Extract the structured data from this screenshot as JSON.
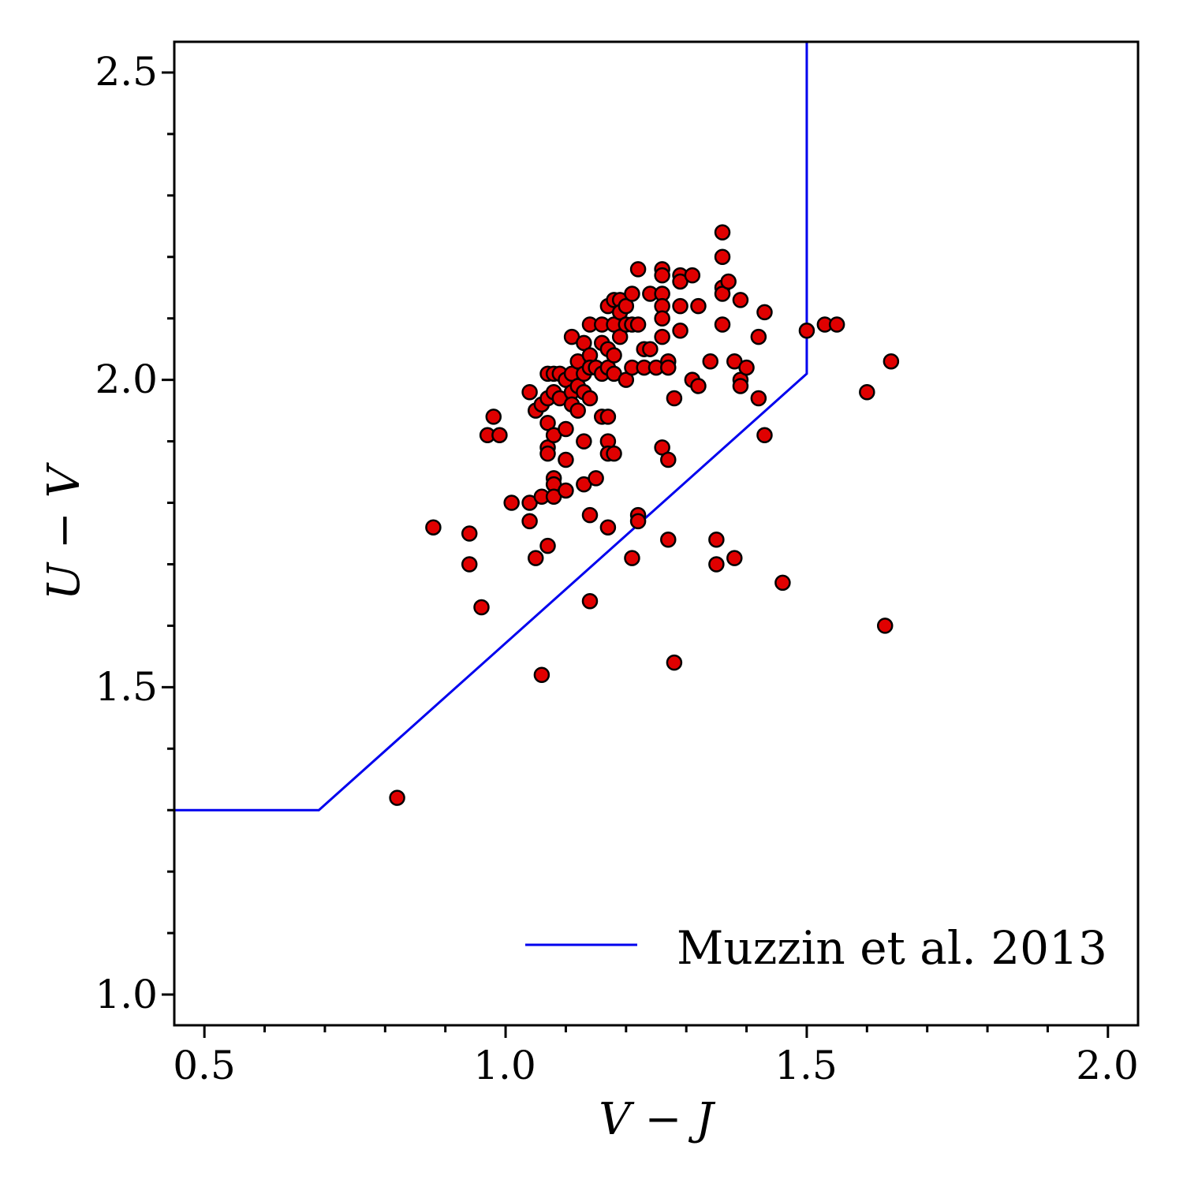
{
  "chart_data": {
    "type": "scatter",
    "title": "",
    "xlabel": "V − J",
    "ylabel": "U − V",
    "xlim": [
      0.45,
      2.05
    ],
    "ylim": [
      0.95,
      2.55
    ],
    "xticks": [
      "0.5",
      "1.0",
      "1.5",
      "2.0"
    ],
    "yticks": [
      "1.0",
      "1.5",
      "2.0",
      "2.5"
    ],
    "grid": false,
    "legend": {
      "position": "bottom-right",
      "entries": [
        "Muzzin et al. 2013"
      ]
    },
    "colors": {
      "points_fill": "#e00000",
      "points_edge": "#000000",
      "boundary_line": "#0000ee"
    },
    "series": [
      {
        "name": "Muzzin et al. 2013",
        "kind": "line",
        "x": [
          0.45,
          0.69,
          1.5,
          1.5
        ],
        "y": [
          1.3,
          1.3,
          2.01,
          2.55
        ]
      },
      {
        "kind": "scatter",
        "points": [
          [
            0.82,
            1.32
          ],
          [
            0.88,
            1.76
          ],
          [
            0.94,
            1.75
          ],
          [
            0.94,
            1.7
          ],
          [
            0.96,
            1.63
          ],
          [
            0.97,
            1.91
          ],
          [
            0.98,
            1.94
          ],
          [
            0.99,
            1.91
          ],
          [
            1.01,
            1.8
          ],
          [
            1.04,
            1.98
          ],
          [
            1.04,
            1.8
          ],
          [
            1.04,
            1.77
          ],
          [
            1.05,
            1.95
          ],
          [
            1.05,
            1.71
          ],
          [
            1.06,
            1.96
          ],
          [
            1.06,
            1.81
          ],
          [
            1.06,
            1.52
          ],
          [
            1.07,
            2.01
          ],
          [
            1.07,
            1.97
          ],
          [
            1.07,
            1.93
          ],
          [
            1.07,
            1.89
          ],
          [
            1.07,
            1.88
          ],
          [
            1.07,
            1.73
          ],
          [
            1.08,
            2.01
          ],
          [
            1.08,
            1.98
          ],
          [
            1.08,
            1.91
          ],
          [
            1.08,
            1.84
          ],
          [
            1.08,
            1.83
          ],
          [
            1.08,
            1.81
          ],
          [
            1.09,
            2.01
          ],
          [
            1.09,
            1.97
          ],
          [
            1.1,
            2.0
          ],
          [
            1.1,
            1.92
          ],
          [
            1.1,
            1.87
          ],
          [
            1.1,
            1.82
          ],
          [
            1.11,
            2.07
          ],
          [
            1.11,
            2.01
          ],
          [
            1.11,
            1.98
          ],
          [
            1.11,
            1.96
          ],
          [
            1.12,
            2.03
          ],
          [
            1.12,
            1.99
          ],
          [
            1.12,
            1.95
          ],
          [
            1.13,
            2.06
          ],
          [
            1.13,
            2.01
          ],
          [
            1.13,
            1.98
          ],
          [
            1.13,
            1.9
          ],
          [
            1.13,
            1.83
          ],
          [
            1.14,
            2.09
          ],
          [
            1.14,
            2.04
          ],
          [
            1.14,
            2.02
          ],
          [
            1.14,
            1.97
          ],
          [
            1.14,
            1.78
          ],
          [
            1.14,
            1.64
          ],
          [
            1.15,
            2.02
          ],
          [
            1.15,
            1.84
          ],
          [
            1.16,
            2.09
          ],
          [
            1.16,
            2.06
          ],
          [
            1.16,
            2.01
          ],
          [
            1.16,
            1.94
          ],
          [
            1.17,
            2.12
          ],
          [
            1.17,
            2.05
          ],
          [
            1.17,
            2.02
          ],
          [
            1.17,
            1.94
          ],
          [
            1.17,
            1.9
          ],
          [
            1.17,
            1.88
          ],
          [
            1.17,
            1.76
          ],
          [
            1.18,
            2.13
          ],
          [
            1.18,
            2.09
          ],
          [
            1.18,
            2.04
          ],
          [
            1.18,
            2.01
          ],
          [
            1.18,
            1.88
          ],
          [
            1.19,
            2.13
          ],
          [
            1.19,
            2.11
          ],
          [
            1.19,
            2.07
          ],
          [
            1.2,
            2.12
          ],
          [
            1.2,
            2.09
          ],
          [
            1.2,
            2.0
          ],
          [
            1.21,
            2.14
          ],
          [
            1.21,
            2.09
          ],
          [
            1.21,
            2.02
          ],
          [
            1.21,
            1.71
          ],
          [
            1.22,
            2.18
          ],
          [
            1.22,
            2.09
          ],
          [
            1.22,
            1.78
          ],
          [
            1.22,
            1.77
          ],
          [
            1.23,
            2.05
          ],
          [
            1.23,
            2.02
          ],
          [
            1.24,
            2.14
          ],
          [
            1.24,
            2.05
          ],
          [
            1.25,
            2.02
          ],
          [
            1.26,
            2.18
          ],
          [
            1.26,
            2.17
          ],
          [
            1.26,
            2.14
          ],
          [
            1.26,
            2.12
          ],
          [
            1.26,
            2.1
          ],
          [
            1.26,
            2.07
          ],
          [
            1.26,
            1.89
          ],
          [
            1.27,
            2.03
          ],
          [
            1.27,
            2.02
          ],
          [
            1.27,
            1.87
          ],
          [
            1.27,
            1.74
          ],
          [
            1.28,
            1.97
          ],
          [
            1.28,
            1.54
          ],
          [
            1.29,
            2.17
          ],
          [
            1.29,
            2.16
          ],
          [
            1.29,
            2.12
          ],
          [
            1.29,
            2.08
          ],
          [
            1.31,
            2.17
          ],
          [
            1.31,
            2.0
          ],
          [
            1.32,
            2.12
          ],
          [
            1.32,
            1.99
          ],
          [
            1.34,
            2.03
          ],
          [
            1.35,
            1.74
          ],
          [
            1.35,
            1.7
          ],
          [
            1.36,
            2.24
          ],
          [
            1.36,
            2.2
          ],
          [
            1.36,
            2.15
          ],
          [
            1.36,
            2.14
          ],
          [
            1.36,
            2.09
          ],
          [
            1.37,
            2.16
          ],
          [
            1.38,
            2.03
          ],
          [
            1.38,
            1.71
          ],
          [
            1.39,
            2.13
          ],
          [
            1.39,
            2.0
          ],
          [
            1.39,
            1.99
          ],
          [
            1.4,
            2.02
          ],
          [
            1.42,
            2.07
          ],
          [
            1.42,
            1.97
          ],
          [
            1.43,
            2.11
          ],
          [
            1.43,
            1.91
          ],
          [
            1.46,
            1.67
          ],
          [
            1.5,
            2.08
          ],
          [
            1.53,
            2.09
          ],
          [
            1.55,
            2.09
          ],
          [
            1.6,
            1.98
          ],
          [
            1.63,
            1.6
          ],
          [
            1.64,
            2.03
          ]
        ]
      }
    ]
  }
}
